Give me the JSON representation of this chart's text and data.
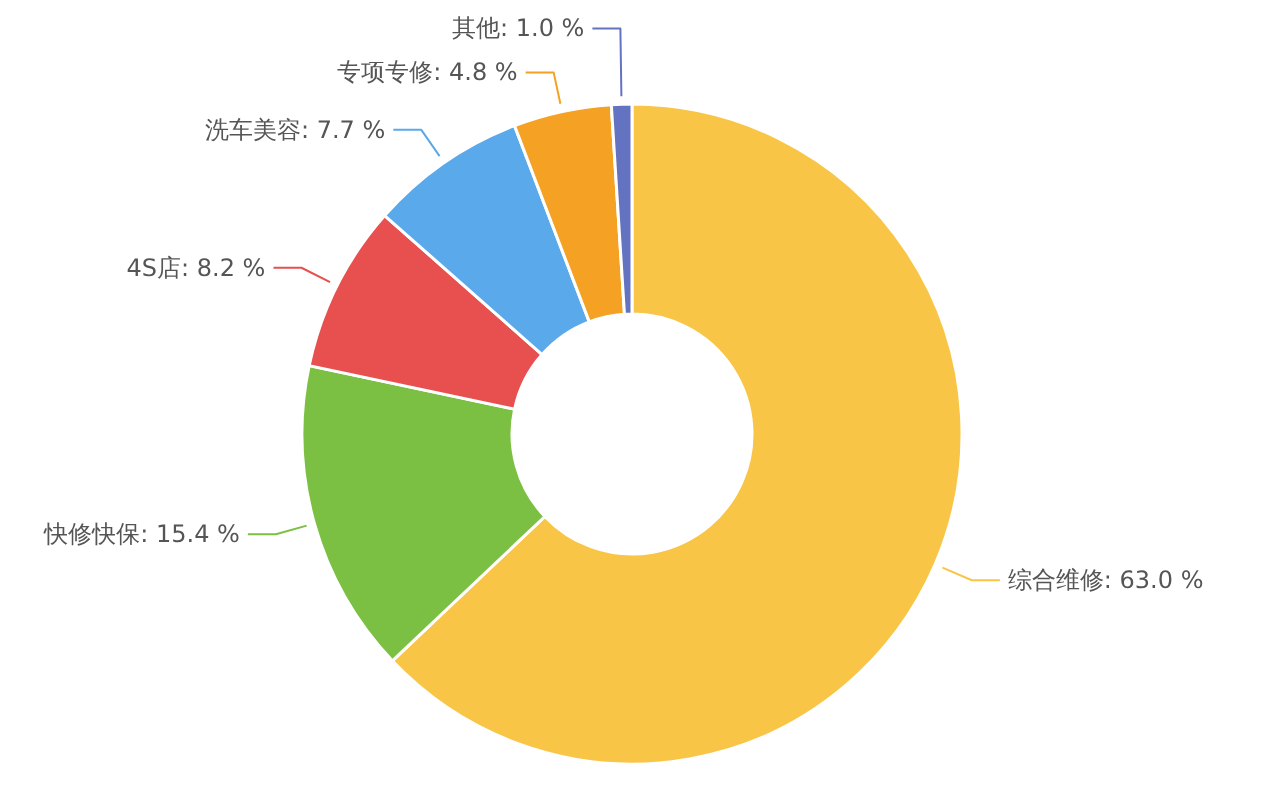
{
  "chart_data": {
    "type": "donut",
    "categories": [
      "综合维修",
      "快修快保",
      "4S店",
      "洗车美容",
      "专项专修",
      "其他"
    ],
    "values": [
      63.0,
      15.4,
      8.2,
      7.7,
      4.8,
      1.0
    ],
    "value_labels": [
      "63.0 %",
      "15.4 %",
      "8.2 %",
      "7.7 %",
      "4.8 %",
      "1.0 %"
    ],
    "colors": [
      "#f9c546",
      "#7cc043",
      "#e85050",
      "#5aa9ea",
      "#f4a124",
      "#6472c2"
    ],
    "legend": false
  }
}
